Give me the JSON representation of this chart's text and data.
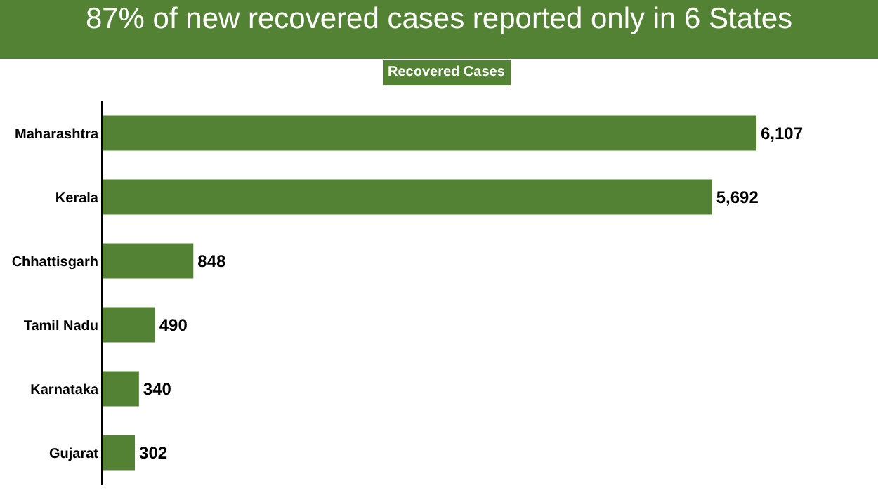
{
  "chart_data": {
    "type": "bar",
    "orientation": "horizontal",
    "title": "87% of new recovered cases reported only in 6 States",
    "categories": [
      "Maharashtra",
      "Kerala",
      "Chhattisgarh",
      "Tamil Nadu",
      "Karnataka",
      "Gujarat"
    ],
    "series": [
      {
        "name": "Recovered Cases",
        "color": "#548235",
        "values": [
          6107,
          5692,
          848,
          490,
          340,
          302
        ],
        "value_labels": [
          "6,107",
          "5,692",
          "848",
          "490",
          "340",
          "302"
        ]
      }
    ],
    "legend": "top"
  }
}
